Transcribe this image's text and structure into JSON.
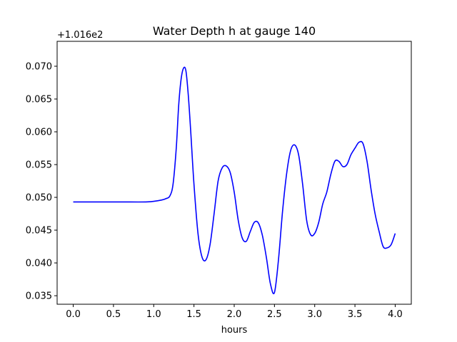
{
  "chart_data": {
    "type": "line",
    "title": "Water Depth h at gauge 140",
    "xlabel": "hours",
    "ylabel": "",
    "y_offset_label": "+1.016e2",
    "xlim": [
      -0.2,
      4.2
    ],
    "ylim": [
      0.0337,
      0.0738
    ],
    "grid": false,
    "x_ticks": [
      0.0,
      0.5,
      1.0,
      1.5,
      2.0,
      2.5,
      3.0,
      3.5,
      4.0
    ],
    "x_tick_labels": [
      "0.0",
      "0.5",
      "1.0",
      "1.5",
      "2.0",
      "2.5",
      "3.0",
      "3.5",
      "4.0"
    ],
    "y_ticks": [
      0.035,
      0.04,
      0.045,
      0.05,
      0.055,
      0.06,
      0.065,
      0.07
    ],
    "y_tick_labels": [
      "0.035",
      "0.040",
      "0.045",
      "0.050",
      "0.055",
      "0.060",
      "0.065",
      "0.070"
    ],
    "series": [
      {
        "color": "#0000ff",
        "x": [
          0.0,
          0.3,
          0.6,
          0.9,
          1.0,
          1.1,
          1.15,
          1.2,
          1.24,
          1.28,
          1.31,
          1.34,
          1.37,
          1.4,
          1.43,
          1.46,
          1.5,
          1.55,
          1.6,
          1.65,
          1.7,
          1.75,
          1.8,
          1.85,
          1.9,
          1.95,
          2.0,
          2.05,
          2.1,
          2.15,
          2.2,
          2.25,
          2.3,
          2.35,
          2.4,
          2.45,
          2.5,
          2.55,
          2.6,
          2.65,
          2.7,
          2.75,
          2.8,
          2.85,
          2.9,
          2.95,
          3.0,
          3.05,
          3.1,
          3.15,
          3.2,
          3.25,
          3.3,
          3.35,
          3.4,
          3.45,
          3.5,
          3.55,
          3.6,
          3.65,
          3.7,
          3.75,
          3.8,
          3.85,
          3.9,
          3.95,
          4.0
        ],
        "values": [
          0.0493,
          0.0493,
          0.0493,
          0.0493,
          0.0494,
          0.0496,
          0.0498,
          0.0502,
          0.052,
          0.0575,
          0.064,
          0.068,
          0.0697,
          0.0693,
          0.0655,
          0.06,
          0.052,
          0.0445,
          0.0409,
          0.0405,
          0.0428,
          0.0475,
          0.0525,
          0.0545,
          0.0548,
          0.0538,
          0.0508,
          0.0465,
          0.0438,
          0.0433,
          0.0448,
          0.0462,
          0.0461,
          0.0442,
          0.0408,
          0.0368,
          0.0355,
          0.0405,
          0.0478,
          0.0535,
          0.0571,
          0.058,
          0.0565,
          0.052,
          0.0465,
          0.0443,
          0.0445,
          0.0462,
          0.049,
          0.0508,
          0.0535,
          0.0555,
          0.0555,
          0.0547,
          0.055,
          0.0565,
          0.0575,
          0.0584,
          0.0582,
          0.0555,
          0.0512,
          0.0475,
          0.0448,
          0.0425,
          0.0423,
          0.0428,
          0.0445
        ]
      }
    ]
  }
}
